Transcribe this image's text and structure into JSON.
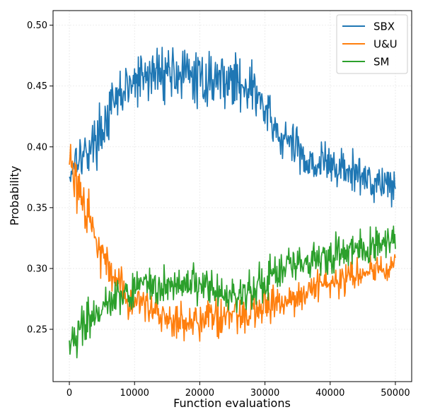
{
  "chart_data": {
    "type": "line",
    "title": "",
    "xlabel": "Function evaluations",
    "ylabel": "Probability",
    "xlim": [
      -2500,
      52500
    ],
    "ylim": [
      0.207,
      0.512
    ],
    "x_ticks": [
      0,
      10000,
      20000,
      30000,
      40000,
      50000
    ],
    "x_tick_labels": [
      "0",
      "10000",
      "20000",
      "30000",
      "40000",
      "50000"
    ],
    "y_ticks": [
      0.25,
      0.3,
      0.35,
      0.4,
      0.45,
      0.5
    ],
    "y_tick_labels": [
      "0.25",
      "0.30",
      "0.35",
      "0.40",
      "0.45",
      "0.50"
    ],
    "grid": true,
    "legend_position": "top-right",
    "noisy_lines": true,
    "series": [
      {
        "name": "SBX",
        "color": "#1f77b4",
        "x": [
          0,
          1000,
          2000,
          3000,
          4000,
          5000,
          6000,
          7000,
          8000,
          9000,
          10000,
          11000,
          12000,
          13000,
          14000,
          15000,
          16000,
          17000,
          18000,
          19000,
          20000,
          21000,
          22000,
          23000,
          24000,
          25000,
          26000,
          27000,
          28000,
          29000,
          30000,
          31000,
          32000,
          33000,
          34000,
          35000,
          36000,
          37000,
          38000,
          39000,
          40000,
          41000,
          42000,
          43000,
          44000,
          45000,
          46000,
          47000,
          48000,
          49000,
          50000
        ],
        "y": [
          0.375,
          0.395,
          0.392,
          0.398,
          0.405,
          0.415,
          0.425,
          0.435,
          0.445,
          0.448,
          0.452,
          0.455,
          0.458,
          0.46,
          0.462,
          0.463,
          0.462,
          0.46,
          0.458,
          0.457,
          0.455,
          0.455,
          0.456,
          0.457,
          0.456,
          0.454,
          0.453,
          0.452,
          0.448,
          0.44,
          0.43,
          0.418,
          0.41,
          0.405,
          0.402,
          0.398,
          0.392,
          0.388,
          0.387,
          0.386,
          0.385,
          0.383,
          0.381,
          0.379,
          0.377,
          0.375,
          0.374,
          0.372,
          0.371,
          0.37,
          0.37
        ],
        "amplitude": [
          0.015,
          0.015,
          0.016,
          0.017,
          0.018,
          0.019,
          0.02,
          0.02,
          0.02,
          0.02,
          0.021,
          0.021,
          0.021,
          0.021,
          0.021,
          0.021,
          0.021,
          0.021,
          0.021,
          0.02,
          0.02,
          0.02,
          0.02,
          0.02,
          0.02,
          0.02,
          0.02,
          0.02,
          0.02,
          0.02,
          0.02,
          0.019,
          0.018,
          0.018,
          0.018,
          0.018,
          0.018,
          0.018,
          0.017,
          0.017,
          0.017,
          0.017,
          0.017,
          0.017,
          0.016,
          0.016,
          0.016,
          0.016,
          0.016,
          0.015,
          0.015
        ]
      },
      {
        "name": "U&U",
        "color": "#ff7f0e",
        "x": [
          0,
          1000,
          2000,
          3000,
          4000,
          5000,
          6000,
          7000,
          8000,
          9000,
          10000,
          11000,
          12000,
          13000,
          14000,
          15000,
          16000,
          17000,
          18000,
          19000,
          20000,
          21000,
          22000,
          23000,
          24000,
          25000,
          26000,
          27000,
          28000,
          29000,
          30000,
          31000,
          32000,
          33000,
          34000,
          35000,
          36000,
          37000,
          38000,
          39000,
          40000,
          41000,
          42000,
          43000,
          44000,
          45000,
          46000,
          47000,
          48000,
          49000,
          50000
        ],
        "y": [
          0.39,
          0.37,
          0.35,
          0.34,
          0.325,
          0.31,
          0.3,
          0.29,
          0.285,
          0.278,
          0.272,
          0.268,
          0.265,
          0.262,
          0.26,
          0.258,
          0.257,
          0.256,
          0.256,
          0.256,
          0.258,
          0.259,
          0.26,
          0.261,
          0.262,
          0.263,
          0.264,
          0.265,
          0.266,
          0.267,
          0.268,
          0.27,
          0.272,
          0.274,
          0.276,
          0.278,
          0.281,
          0.283,
          0.285,
          0.287,
          0.289,
          0.291,
          0.293,
          0.294,
          0.295,
          0.296,
          0.297,
          0.298,
          0.299,
          0.3,
          0.305
        ],
        "amplitude": [
          0.02,
          0.02,
          0.02,
          0.018,
          0.016,
          0.015,
          0.015,
          0.015,
          0.015,
          0.015,
          0.015,
          0.015,
          0.016,
          0.016,
          0.016,
          0.015,
          0.015,
          0.015,
          0.015,
          0.015,
          0.015,
          0.015,
          0.015,
          0.015,
          0.015,
          0.015,
          0.015,
          0.015,
          0.015,
          0.014,
          0.014,
          0.014,
          0.013,
          0.013,
          0.013,
          0.013,
          0.012,
          0.012,
          0.012,
          0.012,
          0.012,
          0.012,
          0.012,
          0.012,
          0.012,
          0.012,
          0.012,
          0.012,
          0.012,
          0.012,
          0.012
        ]
      },
      {
        "name": "SM",
        "color": "#2ca02c",
        "x": [
          0,
          1000,
          2000,
          3000,
          4000,
          5000,
          6000,
          7000,
          8000,
          9000,
          10000,
          11000,
          12000,
          13000,
          14000,
          15000,
          16000,
          17000,
          18000,
          19000,
          20000,
          21000,
          22000,
          23000,
          24000,
          25000,
          26000,
          27000,
          28000,
          29000,
          30000,
          31000,
          32000,
          33000,
          34000,
          35000,
          36000,
          37000,
          38000,
          39000,
          40000,
          41000,
          42000,
          43000,
          44000,
          45000,
          46000,
          47000,
          48000,
          49000,
          50000
        ],
        "y": [
          0.25,
          0.248,
          0.252,
          0.258,
          0.262,
          0.268,
          0.272,
          0.276,
          0.279,
          0.282,
          0.284,
          0.286,
          0.287,
          0.288,
          0.288,
          0.289,
          0.289,
          0.289,
          0.288,
          0.287,
          0.285,
          0.283,
          0.281,
          0.28,
          0.279,
          0.279,
          0.28,
          0.282,
          0.285,
          0.288,
          0.291,
          0.294,
          0.297,
          0.3,
          0.302,
          0.304,
          0.306,
          0.307,
          0.308,
          0.309,
          0.31,
          0.311,
          0.313,
          0.315,
          0.316,
          0.318,
          0.319,
          0.32,
          0.321,
          0.322,
          0.325
        ],
        "amplitude": [
          0.02,
          0.018,
          0.016,
          0.015,
          0.015,
          0.015,
          0.015,
          0.015,
          0.015,
          0.015,
          0.015,
          0.015,
          0.015,
          0.015,
          0.015,
          0.015,
          0.015,
          0.015,
          0.015,
          0.015,
          0.015,
          0.015,
          0.015,
          0.015,
          0.015,
          0.015,
          0.015,
          0.015,
          0.015,
          0.015,
          0.015,
          0.015,
          0.015,
          0.015,
          0.015,
          0.015,
          0.015,
          0.015,
          0.015,
          0.015,
          0.015,
          0.015,
          0.015,
          0.015,
          0.015,
          0.015,
          0.015,
          0.015,
          0.015,
          0.015,
          0.015
        ]
      }
    ]
  }
}
